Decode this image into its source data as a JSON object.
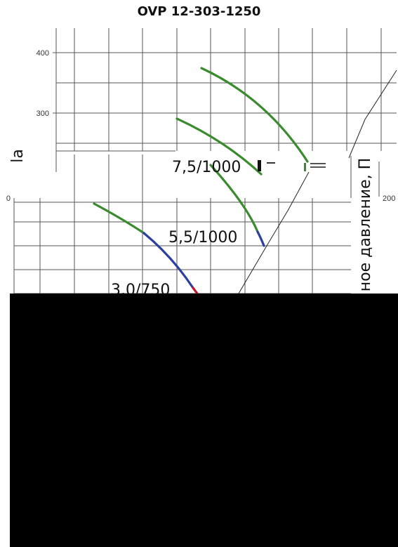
{
  "chart_data": {
    "type": "line",
    "title": "OVP 12-303-1250",
    "ylabel_fragment": "la",
    "ylabel_right": "ное давление, П",
    "y_ticks_top": [
      "400",
      "300"
    ],
    "y_ticks_mid_left": "0",
    "y_ticks_mid_right": "200",
    "ylim_top": [
      230,
      440
    ],
    "series": [
      {
        "name": "7,5/1000",
        "points": [
          [
            4.0,
            375
          ],
          [
            5.0,
            355
          ],
          [
            6.0,
            322
          ],
          [
            7.0,
            275
          ],
          [
            7.5,
            240
          ]
        ]
      },
      {
        "name": "5,5/1000",
        "points": [
          [
            3.4,
            292
          ],
          [
            4.2,
            268
          ],
          [
            5.0,
            238
          ]
        ]
      },
      {
        "name": "3,0/750",
        "points": [
          [
            1.0,
            245
          ],
          [
            1.8,
            232
          ],
          [
            2.6,
            210
          ]
        ]
      }
    ],
    "curve_labels": [
      "7,5/1000",
      "5,5/1000",
      "3,0/750"
    ],
    "colors": {
      "green": "#3a8a2e",
      "blue": "#2b3fa0",
      "red": "#c0182c",
      "grid": "#555555"
    }
  }
}
